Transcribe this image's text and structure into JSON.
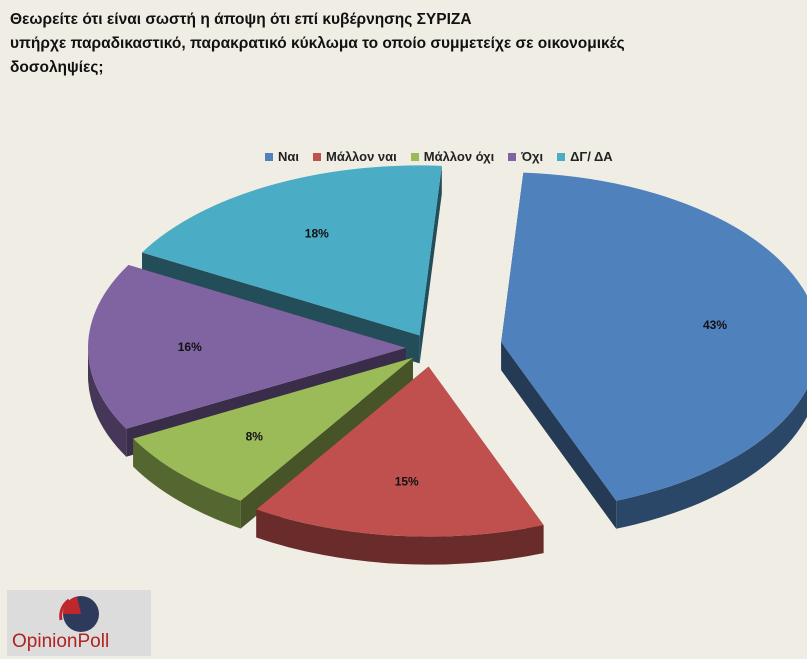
{
  "title_lines": [
    "Θεωρείτε ότι είναι σωστή η άποψη ότι επί κυβέρνησης ΣΥΡΙΖΑ",
    "υπήρχε  παραδικαστικό, παρακρατικό  κύκλωμα  το οποίο συμμετείχε σε οικονομικές",
    "δοσοληψίες;"
  ],
  "chart_data": {
    "type": "pie",
    "title": "Θεωρείτε ότι είναι σωστή η άποψη ότι επί κυβέρνησης ΣΥΡΙΖΑ υπήρχε  παραδικαστικό, παρακρατικό  κύκλωμα  το οποίο συμμετείχε σε οικονομικές δοσοληψίες;",
    "categories": [
      "Ναι",
      "Μάλλον ναι",
      "Μάλλον όχι",
      "Όχι",
      "ΔΓ/ ΔΑ"
    ],
    "values": [
      43,
      15,
      8,
      16,
      18
    ],
    "labels": [
      "43%",
      "15%",
      "8%",
      "16%",
      "18%"
    ],
    "colors": [
      "#4f81bd",
      "#c0504d",
      "#9bbb59",
      "#8064a2",
      "#4bacc6"
    ],
    "style": "3d-exploded",
    "legend_position": "top"
  },
  "logo": {
    "text": "OpinionPoll"
  }
}
